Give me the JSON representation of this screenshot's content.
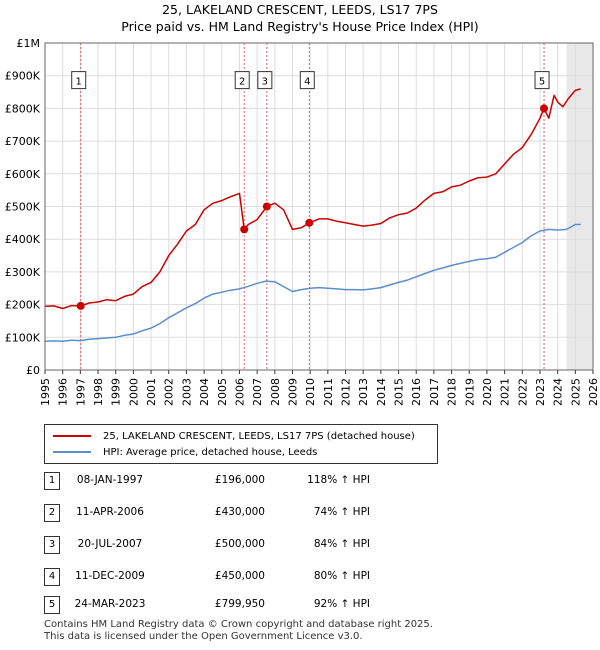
{
  "title_line1": "25, LAKELAND CRESCENT, LEEDS, LS17 7PS",
  "title_line2": "Price paid vs. HM Land Registry's House Price Index (HPI)",
  "colors": {
    "property": "#cc0000",
    "hpi": "#5b8fcc",
    "marker_line": "#e06060",
    "grid": "#dddddd",
    "future_band": "#e8e8e8"
  },
  "chart_data": {
    "type": "line",
    "xlim": [
      1995,
      2026
    ],
    "ylim": [
      0,
      1000000
    ],
    "x_ticks": [
      "1995",
      "1996",
      "1997",
      "1998",
      "1999",
      "2000",
      "2001",
      "2002",
      "2003",
      "2004",
      "2005",
      "2006",
      "2007",
      "2008",
      "2009",
      "2010",
      "2011",
      "2012",
      "2013",
      "2014",
      "2015",
      "2016",
      "2017",
      "2018",
      "2019",
      "2020",
      "2021",
      "2022",
      "2023",
      "2024",
      "2025",
      "2026"
    ],
    "y_ticks": [
      {
        "value": 0,
        "label": "£0"
      },
      {
        "value": 100000,
        "label": "£100K"
      },
      {
        "value": 200000,
        "label": "£200K"
      },
      {
        "value": 300000,
        "label": "£300K"
      },
      {
        "value": 400000,
        "label": "£400K"
      },
      {
        "value": 500000,
        "label": "£500K"
      },
      {
        "value": 600000,
        "label": "£600K"
      },
      {
        "value": 700000,
        "label": "£700K"
      },
      {
        "value": 800000,
        "label": "£800K"
      },
      {
        "value": 900000,
        "label": "£900K"
      },
      {
        "value": 1000000,
        "label": "£1M"
      }
    ],
    "future_from": 2024.5,
    "series": [
      {
        "name": "25, LAKELAND CRESCENT, LEEDS, LS17 7PS (detached house)",
        "key": "property",
        "x": [
          1995.0,
          1995.5,
          1996.0,
          1996.5,
          1997.02,
          1997.5,
          1998.0,
          1998.5,
          1999.0,
          1999.5,
          2000.0,
          2000.5,
          2001.0,
          2001.5,
          2002.0,
          2002.5,
          2003.0,
          2003.5,
          2004.0,
          2004.5,
          2005.0,
          2005.5,
          2006.0,
          2006.27,
          2006.5,
          2007.0,
          2007.55,
          2008.0,
          2008.5,
          2009.0,
          2009.5,
          2009.95,
          2010.5,
          2011.0,
          2011.5,
          2012.0,
          2012.5,
          2013.0,
          2013.5,
          2014.0,
          2014.5,
          2015.0,
          2015.5,
          2016.0,
          2016.5,
          2017.0,
          2017.5,
          2018.0,
          2018.5,
          2019.0,
          2019.5,
          2020.0,
          2020.5,
          2021.0,
          2021.5,
          2022.0,
          2022.5,
          2023.0,
          2023.23,
          2023.5,
          2023.8,
          2024.0,
          2024.3,
          2024.6,
          2025.0,
          2025.3
        ],
        "y": [
          195000,
          196000,
          188000,
          197000,
          196000,
          205000,
          208000,
          215000,
          212000,
          225000,
          232000,
          255000,
          268000,
          300000,
          350000,
          385000,
          425000,
          445000,
          490000,
          510000,
          518000,
          530000,
          540000,
          430000,
          445000,
          460000,
          500000,
          510000,
          490000,
          430000,
          435000,
          450000,
          462000,
          462000,
          455000,
          450000,
          445000,
          440000,
          443000,
          448000,
          465000,
          475000,
          480000,
          495000,
          520000,
          540000,
          545000,
          560000,
          565000,
          578000,
          588000,
          590000,
          600000,
          630000,
          660000,
          680000,
          720000,
          770000,
          799950,
          770000,
          840000,
          820000,
          805000,
          830000,
          855000,
          860000
        ]
      },
      {
        "name": "HPI: Average price, detached house, Leeds",
        "key": "hpi",
        "x": [
          1995.0,
          1995.5,
          1996.0,
          1996.5,
          1997.0,
          1997.5,
          1998.0,
          1998.5,
          1999.0,
          1999.5,
          2000.0,
          2000.5,
          2001.0,
          2001.5,
          2002.0,
          2002.5,
          2003.0,
          2003.5,
          2004.0,
          2004.5,
          2005.0,
          2005.5,
          2006.0,
          2006.5,
          2007.0,
          2007.5,
          2008.0,
          2008.5,
          2009.0,
          2009.5,
          2010.0,
          2010.5,
          2011.0,
          2011.5,
          2012.0,
          2012.5,
          2013.0,
          2013.5,
          2014.0,
          2014.5,
          2015.0,
          2015.5,
          2016.0,
          2016.5,
          2017.0,
          2017.5,
          2018.0,
          2018.5,
          2019.0,
          2019.5,
          2020.0,
          2020.5,
          2021.0,
          2021.5,
          2022.0,
          2022.5,
          2023.0,
          2023.5,
          2024.0,
          2024.5,
          2025.0,
          2025.3
        ],
        "y": [
          88000,
          89000,
          88000,
          91000,
          90000,
          94000,
          96000,
          98000,
          100000,
          106000,
          110000,
          120000,
          128000,
          142000,
          160000,
          175000,
          190000,
          203000,
          220000,
          232000,
          238000,
          244000,
          248000,
          256000,
          265000,
          272000,
          270000,
          255000,
          240000,
          246000,
          250000,
          252000,
          250000,
          248000,
          246000,
          246000,
          245000,
          248000,
          252000,
          260000,
          268000,
          275000,
          285000,
          295000,
          305000,
          312000,
          320000,
          326000,
          332000,
          338000,
          340000,
          345000,
          360000,
          375000,
          390000,
          410000,
          425000,
          430000,
          428000,
          430000,
          445000,
          445000
        ]
      }
    ],
    "sales_points": [
      {
        "n": "1",
        "x": 1997.02,
        "y": 196000
      },
      {
        "n": "2",
        "x": 2006.27,
        "y": 430000
      },
      {
        "n": "3",
        "x": 2007.55,
        "y": 500000
      },
      {
        "n": "4",
        "x": 2009.95,
        "y": 450000
      },
      {
        "n": "5",
        "x": 2023.23,
        "y": 799950
      }
    ],
    "marker_label_y": 885000
  },
  "legend": {
    "property_label": "25, LAKELAND CRESCENT, LEEDS, LS17 7PS (detached house)",
    "hpi_label": "HPI: Average price, detached house, Leeds"
  },
  "sales": [
    {
      "n": "1",
      "date": "08-JAN-1997",
      "price": "£196,000",
      "hpi": "118% ↑ HPI"
    },
    {
      "n": "2",
      "date": "11-APR-2006",
      "price": "£430,000",
      "hpi": "74% ↑ HPI"
    },
    {
      "n": "3",
      "date": "20-JUL-2007",
      "price": "£500,000",
      "hpi": "84% ↑ HPI"
    },
    {
      "n": "4",
      "date": "11-DEC-2009",
      "price": "£450,000",
      "hpi": "80% ↑ HPI"
    },
    {
      "n": "5",
      "date": "24-MAR-2023",
      "price": "£799,950",
      "hpi": "92% ↑ HPI"
    }
  ],
  "footer_line1": "Contains HM Land Registry data © Crown copyright and database right 2025.",
  "footer_line2": "This data is licensed under the Open Government Licence v3.0."
}
